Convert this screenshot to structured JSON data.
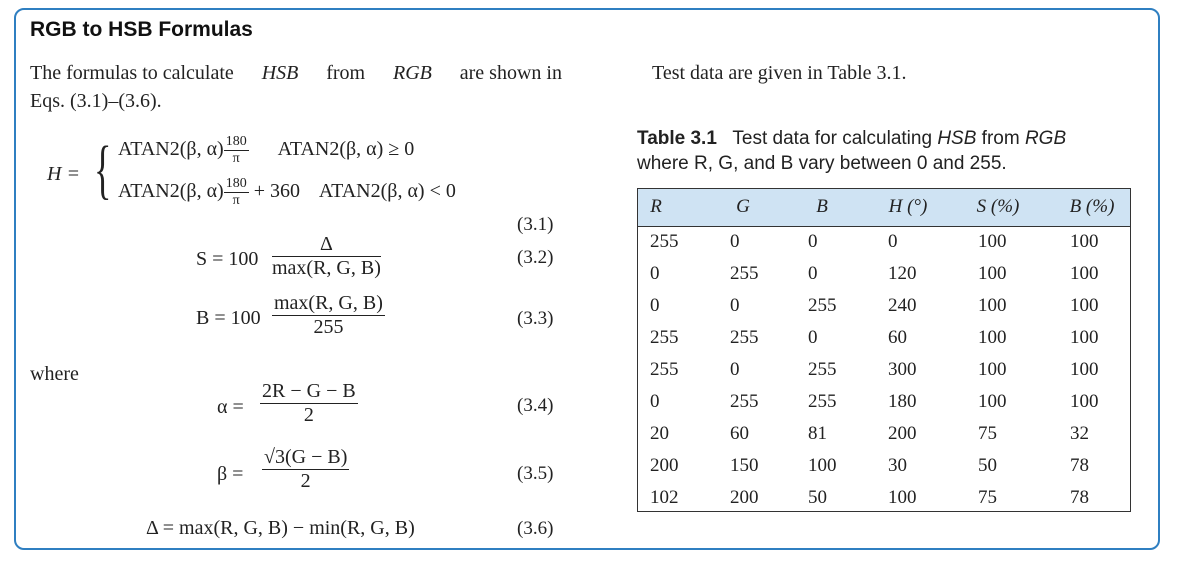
{
  "title": "RGB to HSB Formulas",
  "intro": {
    "line1_a": "The formulas to calculate",
    "line1_hsb": "HSB",
    "line1_b": "from",
    "line1_rgb": "RGB",
    "line1_c": "are shown in",
    "line2": "Eqs. (3.1)–(3.6)."
  },
  "right_intro": "Test data are given in Table 3.1.",
  "equations": {
    "h_lhs": "H =",
    "h_case1_expr": "ATAN2(β, α)",
    "h_case1_num": "180",
    "h_case1_den": "π",
    "h_case1_cond": "ATAN2(β, α) ≥ 0",
    "h_case2_expr": "ATAN2(β, α)",
    "h_case2_num": "180",
    "h_case2_den": "π",
    "h_case2_add": "+ 360",
    "h_case2_cond": "ATAN2(β, α) < 0",
    "n31": "(3.1)",
    "s_lhs": "S = 100",
    "s_num": "Δ",
    "s_den": "max(R, G, B)",
    "n32": "(3.2)",
    "b_lhs": "B = 100",
    "b_num": "max(R, G, B)",
    "b_den": "255",
    "n33": "(3.3)",
    "where": "where",
    "alpha_lhs": "α =",
    "alpha_num": "2R − G − B",
    "alpha_den": "2",
    "n34": "(3.4)",
    "beta_lhs": "β =",
    "beta_num": "√3(G − B)",
    "beta_den": "2",
    "n35": "(3.5)",
    "delta": "Δ = max(R, G, B) − min(R, G, B)",
    "n36": "(3.6)"
  },
  "table": {
    "caption_label": "Table 3.1",
    "caption_line1_a": "Test data for calculating",
    "caption_hsb": "HSB",
    "caption_from": "from",
    "caption_rgb": "RGB",
    "caption_line2": "where R, G, and B vary between 0 and 255.",
    "headers": [
      "R",
      "G",
      "B",
      "H (°)",
      "S (%)",
      "B (%)"
    ],
    "rows": [
      [
        "255",
        "0",
        "0",
        "0",
        "100",
        "100"
      ],
      [
        "0",
        "255",
        "0",
        "120",
        "100",
        "100"
      ],
      [
        "0",
        "0",
        "255",
        "240",
        "100",
        "100"
      ],
      [
        "255",
        "255",
        "0",
        "60",
        "100",
        "100"
      ],
      [
        "255",
        "0",
        "255",
        "300",
        "100",
        "100"
      ],
      [
        "0",
        "255",
        "255",
        "180",
        "100",
        "100"
      ],
      [
        "20",
        "60",
        "81",
        "200",
        "75",
        "32"
      ],
      [
        "200",
        "150",
        "100",
        "30",
        "50",
        "78"
      ],
      [
        "102",
        "200",
        "50",
        "100",
        "75",
        "78"
      ]
    ]
  },
  "colors": {
    "border": "#2f7fc1",
    "table_header_bg": "#cfe3f3"
  }
}
